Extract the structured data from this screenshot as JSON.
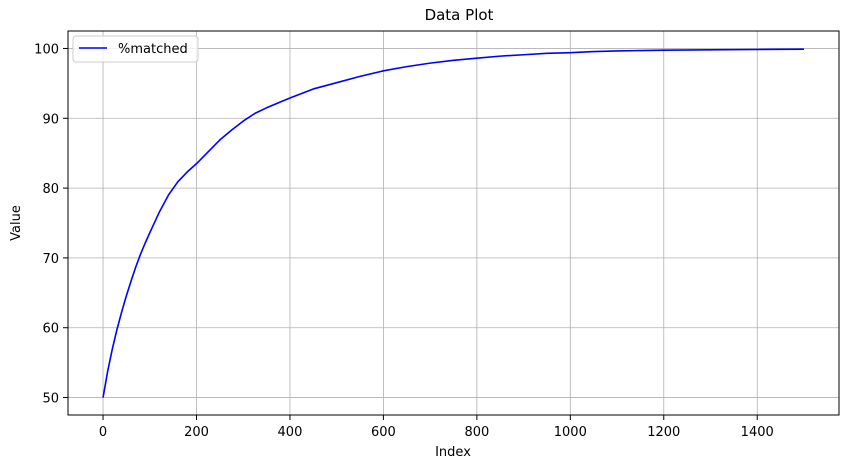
{
  "chart_data": {
    "type": "line",
    "title": "Data Plot",
    "xlabel": "Index",
    "ylabel": "Value",
    "xlim": [
      -75,
      1575
    ],
    "ylim": [
      47.5,
      102.5
    ],
    "xticks": [
      0,
      200,
      400,
      600,
      800,
      1000,
      1200,
      1400
    ],
    "yticks": [
      50,
      60,
      70,
      80,
      90,
      100
    ],
    "grid": true,
    "legend_position": "top-left",
    "series": [
      {
        "name": "%matched",
        "color": "#0000ff",
        "x": [
          0,
          10,
          20,
          30,
          40,
          50,
          60,
          70,
          80,
          90,
          100,
          120,
          140,
          160,
          180,
          200,
          225,
          250,
          275,
          300,
          325,
          350,
          400,
          450,
          500,
          550,
          600,
          650,
          700,
          750,
          800,
          850,
          900,
          950,
          1000,
          1050,
          1100,
          1150,
          1200,
          1300,
          1400,
          1500
        ],
        "values": [
          50.0,
          53.8,
          57.0,
          59.8,
          62.3,
          64.6,
          66.7,
          68.7,
          70.5,
          72.1,
          73.6,
          76.5,
          79.0,
          80.9,
          82.3,
          83.5,
          85.2,
          86.9,
          88.3,
          89.6,
          90.7,
          91.5,
          92.9,
          94.2,
          95.1,
          96.0,
          96.8,
          97.4,
          97.9,
          98.3,
          98.6,
          98.9,
          99.1,
          99.3,
          99.4,
          99.55,
          99.65,
          99.7,
          99.75,
          99.8,
          99.85,
          99.9
        ]
      }
    ]
  }
}
